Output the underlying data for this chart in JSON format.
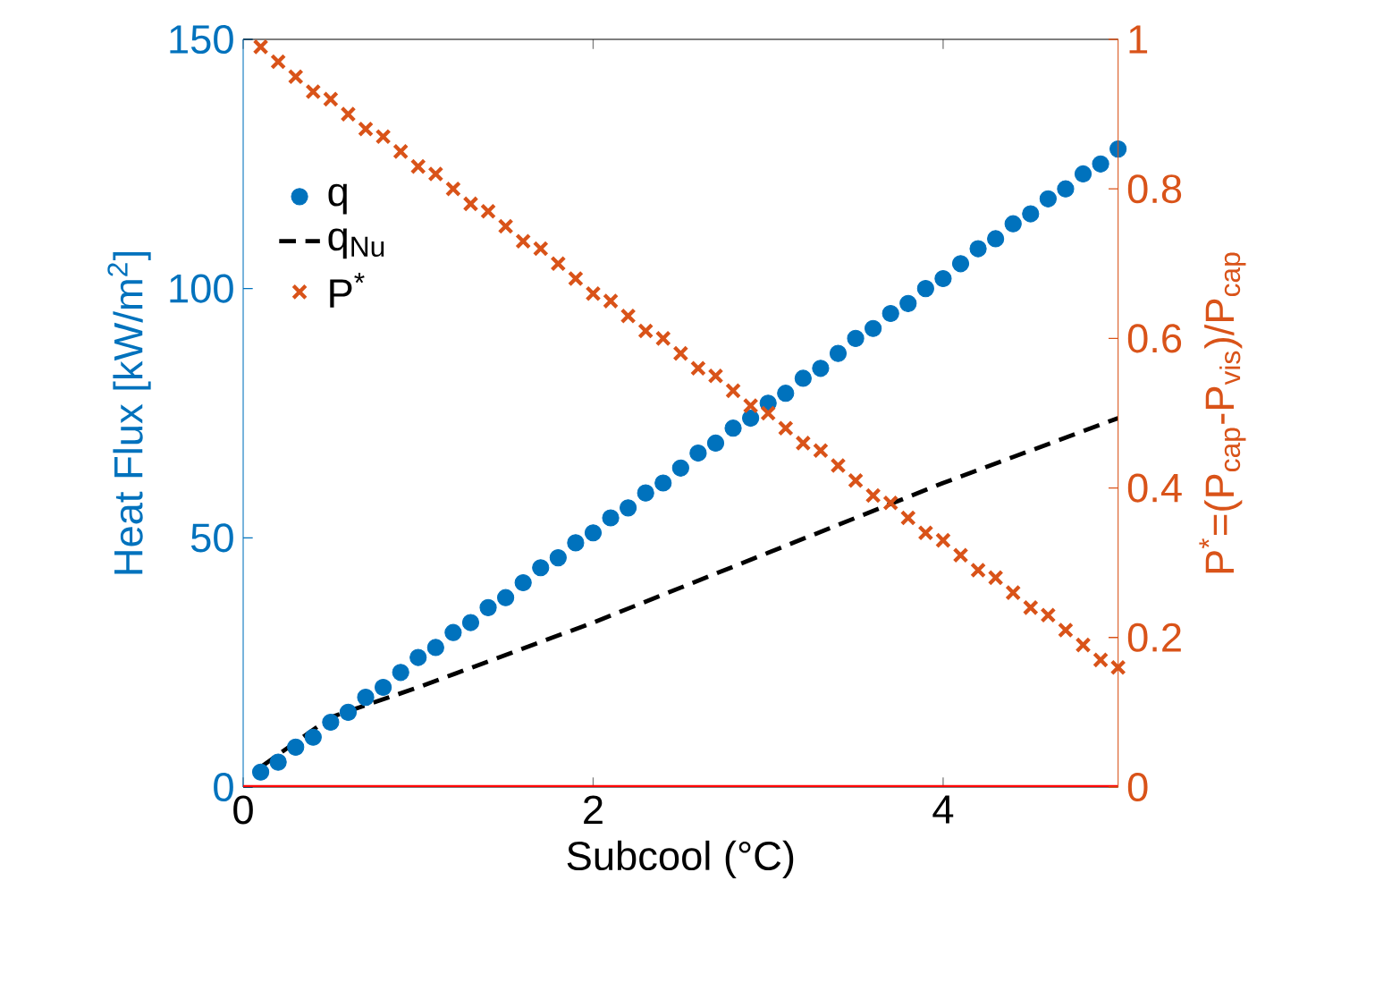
{
  "chart_data": {
    "type": "scatter",
    "xlabel": "Subcool (°C)",
    "ylabel": "Heat Flux [kW/m$^{2}$]",
    "y2label": "P$^{*}$=(P$_{cap}$-P$_{vis}$)/P$_{cap}$",
    "x": [
      0.1,
      0.2,
      0.3,
      0.4,
      0.5,
      0.6,
      0.7,
      0.8,
      0.9,
      1.0,
      1.1,
      1.2,
      1.3,
      1.4,
      1.5,
      1.6,
      1.7,
      1.8,
      1.9,
      2.0,
      2.1,
      2.2,
      2.3,
      2.4,
      2.5,
      2.6,
      2.7,
      2.8,
      2.9,
      3.0,
      3.1,
      3.2,
      3.3,
      3.4,
      3.5,
      3.6,
      3.7,
      3.8,
      3.9,
      4.0,
      4.1,
      4.2,
      4.3,
      4.4,
      4.5,
      4.6,
      4.7,
      4.8,
      4.9,
      5.0
    ],
    "series": [
      {
        "name": "q",
        "marker": "circle",
        "color": "#0072bd",
        "values": [
          3,
          5,
          8,
          10,
          13,
          15,
          18,
          20,
          23,
          26,
          28,
          31,
          33,
          36,
          38,
          41,
          44,
          46,
          49,
          51,
          54,
          56,
          59,
          61,
          64,
          67,
          69,
          72,
          74,
          77,
          79,
          82,
          84,
          87,
          90,
          92,
          95,
          97,
          100,
          102,
          105,
          108,
          110,
          113,
          115,
          118,
          120,
          123,
          125,
          128
        ]
      },
      {
        "name": "q$_{Nu}$",
        "type": "line",
        "line_style": "dashed",
        "color": "#000000",
        "x": [
          0.1,
          0.5,
          1.0,
          2.0,
          3.0,
          4.0,
          5.0
        ],
        "values": [
          4,
          14,
          20,
          33,
          47,
          61,
          74
        ]
      },
      {
        "name": "P$^{*}$",
        "marker": "cross",
        "axis": "y2",
        "color": "#d95319",
        "values": [
          0.99,
          0.97,
          0.95,
          0.93,
          0.92,
          0.9,
          0.88,
          0.87,
          0.85,
          0.83,
          0.82,
          0.8,
          0.78,
          0.77,
          0.75,
          0.73,
          0.72,
          0.7,
          0.68,
          0.66,
          0.65,
          0.63,
          0.61,
          0.6,
          0.58,
          0.56,
          0.55,
          0.53,
          0.51,
          0.5,
          0.48,
          0.46,
          0.45,
          0.43,
          0.41,
          0.39,
          0.38,
          0.36,
          0.34,
          0.33,
          0.31,
          0.29,
          0.28,
          0.26,
          0.24,
          0.23,
          0.21,
          0.19,
          0.17,
          0.16
        ]
      }
    ],
    "xlim": [
      0,
      5
    ],
    "xticks": [
      0,
      2,
      4
    ],
    "ylim": [
      0,
      150
    ],
    "yticks": [
      0,
      50,
      100,
      150
    ],
    "y2lim": [
      0,
      1
    ],
    "y2ticks": [
      0,
      0.2,
      0.4,
      0.6,
      0.8,
      1
    ],
    "ref_lines": [
      {
        "axis": "y",
        "value": 0,
        "color": "#ff0000"
      }
    ],
    "grid": false,
    "legend": "top left"
  }
}
